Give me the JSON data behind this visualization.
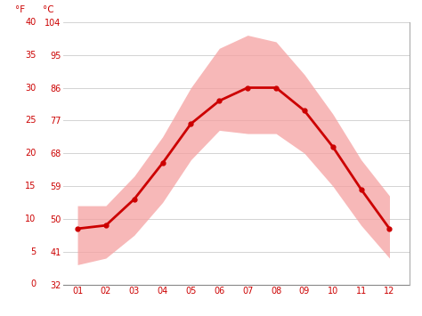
{
  "months": [
    1,
    2,
    3,
    4,
    5,
    6,
    7,
    8,
    9,
    10,
    11,
    12
  ],
  "month_labels": [
    "01",
    "02",
    "03",
    "04",
    "05",
    "06",
    "07",
    "08",
    "09",
    "10",
    "11",
    "12"
  ],
  "avg_temp_c": [
    8.5,
    9.0,
    13.0,
    18.5,
    24.5,
    28.0,
    30.0,
    30.0,
    26.5,
    21.0,
    14.5,
    8.5
  ],
  "high_temp_c": [
    12.0,
    12.0,
    16.5,
    22.5,
    30.0,
    36.0,
    38.0,
    37.0,
    32.0,
    26.0,
    19.0,
    13.5
  ],
  "low_temp_c": [
    3.0,
    4.0,
    7.5,
    12.5,
    19.0,
    23.5,
    23.0,
    23.0,
    20.0,
    15.0,
    9.0,
    4.0
  ],
  "ylim_c": [
    0,
    40
  ],
  "yticks_c": [
    0,
    5,
    10,
    15,
    20,
    25,
    30,
    35,
    40
  ],
  "yticks_f": [
    32,
    41,
    50,
    59,
    68,
    77,
    86,
    95,
    104
  ],
  "line_color": "#cc0000",
  "fill_color": "#f5a0a0",
  "fill_alpha": 0.75,
  "bg_color": "#ffffff",
  "grid_color": "#cccccc",
  "label_color": "#cc0000",
  "line_width": 2.0,
  "marker_size": 3.5,
  "xlim": [
    0.5,
    12.7
  ]
}
